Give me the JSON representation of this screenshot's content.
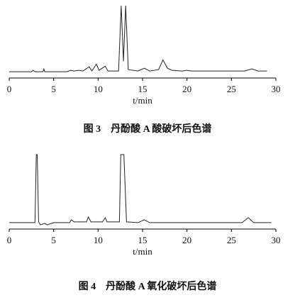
{
  "chart_data": [
    {
      "type": "line",
      "caption": "图 3　丹酚酸 A 酸破坏后色谱",
      "x_label": "t/min",
      "xlim": [
        0,
        30
      ],
      "xticks": [
        0,
        5,
        10,
        15,
        20,
        25,
        30
      ],
      "ylim": [
        0,
        100
      ],
      "series": [
        {
          "color": "#222222",
          "x": [
            0,
            2.5,
            2.7,
            2.9,
            3.8,
            3.9,
            4.0,
            6.5,
            6.9,
            7.3,
            7.8,
            8.3,
            9.0,
            9.3,
            9.8,
            10.1,
            10.8,
            11.1,
            12.3,
            12.6,
            12.85,
            13.1,
            13.4,
            14.5,
            15.2,
            15.8,
            16.8,
            17.3,
            17.8,
            18.3,
            19.5,
            20,
            20.5,
            26.5,
            27.3,
            28,
            29
          ],
          "values": [
            5,
            5,
            7,
            5,
            5,
            9,
            5,
            5,
            7,
            6,
            7,
            6,
            12,
            6,
            16,
            7,
            13,
            6,
            6,
            100,
            20,
            100,
            8,
            6,
            10,
            6,
            8,
            22,
            10,
            7,
            6,
            7,
            6,
            6,
            9,
            6,
            6
          ]
        }
      ]
    },
    {
      "type": "line",
      "caption": "图 4　丹酚酸 A 氧化破坏后色谱",
      "x_label": "t/min",
      "xlim": [
        0,
        30
      ],
      "xticks": [
        0,
        5,
        10,
        15,
        20,
        25,
        30
      ],
      "ylim": [
        0,
        100
      ],
      "series": [
        {
          "color": "#222222",
          "x": [
            0,
            2.9,
            3.05,
            3.15,
            3.3,
            3.5,
            4.0,
            4.3,
            5,
            6.8,
            7.0,
            7.3,
            7.5,
            8.7,
            8.9,
            9.2,
            10.5,
            10.8,
            11.0,
            12.4,
            12.55,
            12.9,
            13.2,
            14.5,
            15.2,
            15.8,
            26.2,
            26.9,
            27.5,
            29.5
          ],
          "values": [
            5,
            5,
            100,
            100,
            6,
            2,
            4,
            2,
            5,
            5,
            9,
            6,
            6,
            6,
            13,
            6,
            6,
            12,
            6,
            6,
            100,
            100,
            6,
            5,
            9,
            5,
            5,
            12,
            5,
            5
          ]
        }
      ]
    }
  ]
}
